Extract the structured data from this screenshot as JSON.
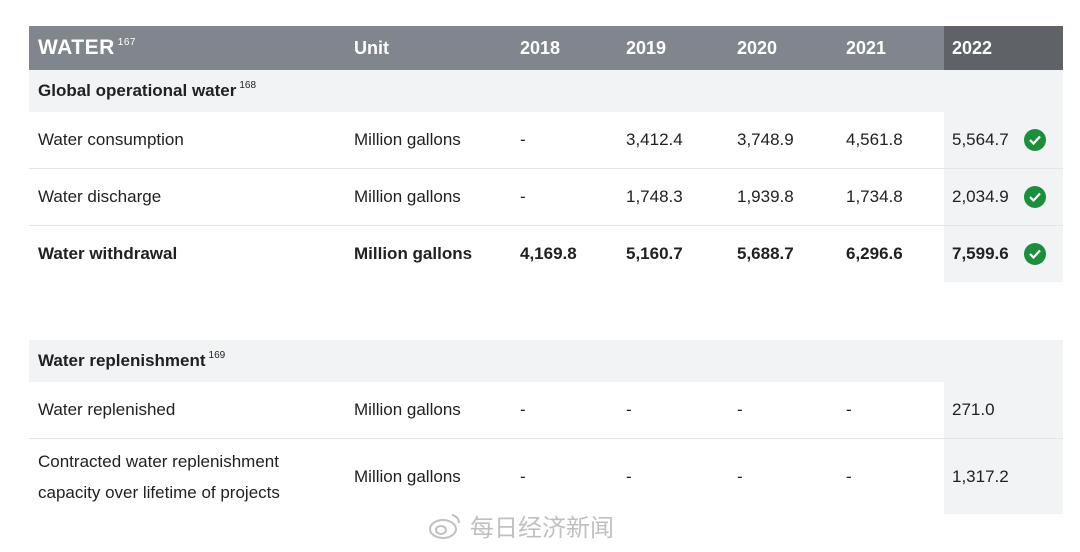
{
  "header": {
    "title": "WATER",
    "title_ref": "167",
    "unit": "Unit",
    "years": [
      "2018",
      "2019",
      "2020",
      "2021",
      "2022"
    ]
  },
  "sections": [
    {
      "title": "Global operational water",
      "ref": "168",
      "rows": [
        {
          "name": "Water consumption",
          "unit": "Million gallons",
          "values": [
            "-",
            "3,412.4",
            "3,748.9",
            "4,561.8",
            "5,564.7"
          ],
          "verified": true,
          "bold": false
        },
        {
          "name": "Water discharge",
          "unit": "Million gallons",
          "values": [
            "-",
            "1,748.3",
            "1,939.8",
            "1,734.8",
            "2,034.9"
          ],
          "verified": true,
          "bold": false
        },
        {
          "name": "Water withdrawal",
          "unit": "Million gallons",
          "values": [
            "4,169.8",
            "5,160.7",
            "5,688.7",
            "6,296.6",
            "7,599.6"
          ],
          "verified": true,
          "bold": true
        }
      ]
    },
    {
      "title": "Water replenishment",
      "ref": "169",
      "rows": [
        {
          "name": "Water replenished",
          "unit": "Million gallons",
          "values": [
            "-",
            "-",
            "-",
            "-",
            "271.0"
          ],
          "verified": false,
          "bold": false
        },
        {
          "name_lines": [
            "Contracted water replenishment",
            "capacity over lifetime of projects"
          ],
          "unit": "Million gallons",
          "values": [
            "-",
            "-",
            "-",
            "-",
            "1,317.2"
          ],
          "verified": false,
          "bold": false
        }
      ]
    }
  ],
  "watermark": "每日经济新闻",
  "icons": {
    "verified": "check-circle-icon",
    "watermark_logo": "weibo-icon"
  },
  "colors": {
    "header_bg": "#80868b",
    "header_highlight": "#5f6368",
    "section_bg": "#f1f3f4",
    "check": "#1e8e3e"
  }
}
